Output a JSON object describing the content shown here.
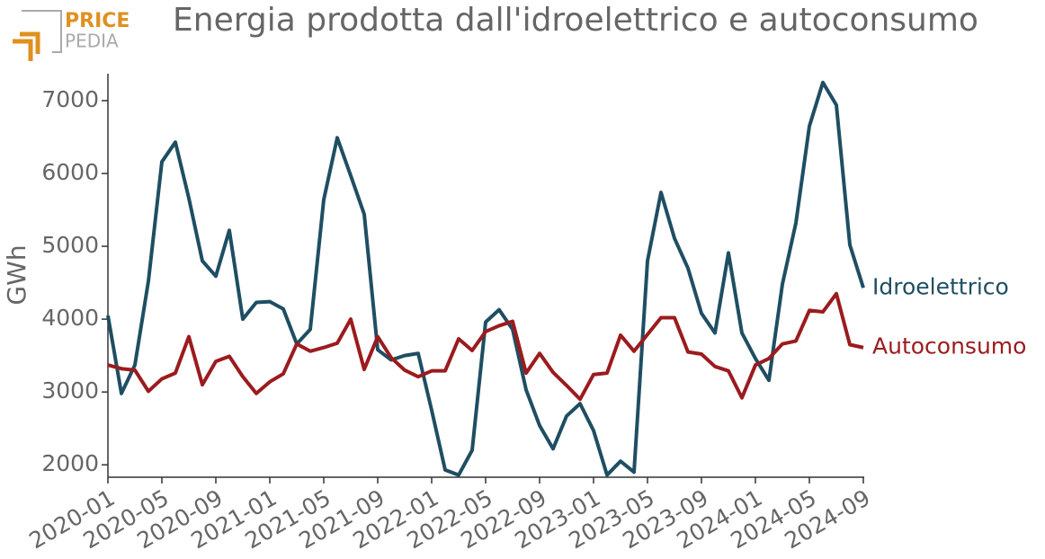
{
  "logo": {
    "line1": "PRICE",
    "line2": "PEDIA"
  },
  "chart_data": {
    "type": "line",
    "title": "Energia prodotta dall'idroelettrico e autoconsumo",
    "y_label": "GWh",
    "categories": [
      "2020-01",
      null,
      null,
      null,
      "2020-05",
      null,
      null,
      null,
      "2020-09",
      null,
      null,
      null,
      "2021-01",
      null,
      null,
      null,
      "2021-05",
      null,
      null,
      null,
      "2021-09",
      null,
      null,
      null,
      "2022-01",
      null,
      null,
      null,
      "2022-05",
      null,
      null,
      null,
      "2022-09",
      null,
      null,
      null,
      "2023-01",
      null,
      null,
      null,
      "2023-05",
      null,
      null,
      null,
      "2023-09",
      null,
      null,
      null,
      "2024-01",
      null,
      null,
      null,
      "2024-05",
      null,
      null,
      null,
      "2024-09"
    ],
    "ylim": [
      1830,
      7370
    ],
    "yticks": [
      2000,
      3000,
      4000,
      5000,
      6000,
      7000
    ],
    "grid": false,
    "legend": "line-end",
    "series": [
      {
        "name": "Idroelettrico",
        "color": "#1f4e63",
        "values": [
          4050,
          2980,
          3370,
          4520,
          6160,
          6430,
          5660,
          4800,
          4590,
          5220,
          4000,
          4230,
          4240,
          4140,
          3660,
          3860,
          5640,
          6490,
          5970,
          5440,
          3580,
          3440,
          3500,
          3530,
          2750,
          1930,
          1860,
          2200,
          3960,
          4130,
          3860,
          3030,
          2540,
          2220,
          2670,
          2840,
          2470,
          1860,
          2050,
          1900,
          4800,
          5740,
          5110,
          4700,
          4080,
          3810,
          4910,
          3810,
          3460,
          3160,
          4480,
          5320,
          6650,
          7250,
          6940,
          5020,
          4430
        ]
      },
      {
        "name": "Autoconsumo",
        "color": "#9b1b1e",
        "values": [
          3370,
          3320,
          3300,
          3010,
          3180,
          3260,
          3760,
          3100,
          3420,
          3490,
          3210,
          2980,
          3140,
          3250,
          3660,
          3560,
          3610,
          3670,
          4000,
          3310,
          3760,
          3470,
          3300,
          3210,
          3290,
          3290,
          3730,
          3570,
          3830,
          3910,
          3970,
          3260,
          3530,
          3270,
          3090,
          2900,
          3240,
          3260,
          3780,
          3560,
          3790,
          4020,
          4020,
          3550,
          3520,
          3350,
          3290,
          2920,
          3370,
          3460,
          3660,
          3700,
          4120,
          4100,
          4350,
          3650,
          3610
        ]
      }
    ]
  }
}
